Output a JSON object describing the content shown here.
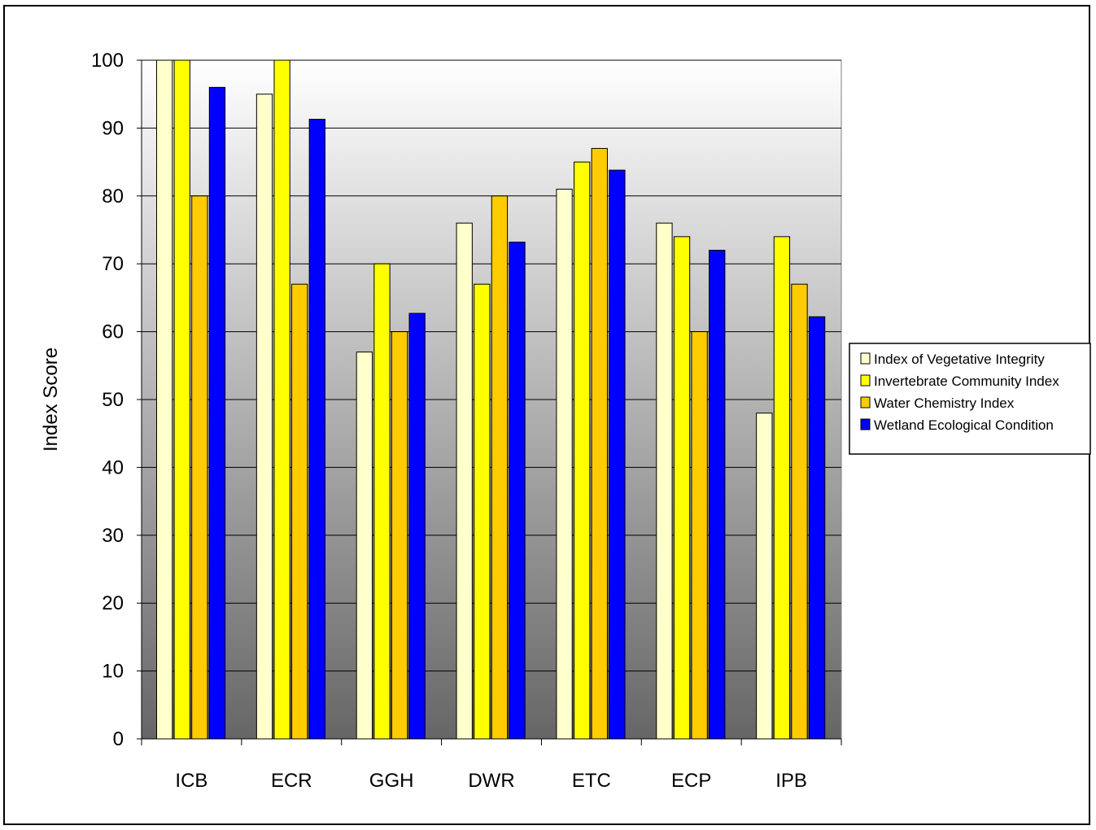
{
  "chart_data": {
    "type": "bar",
    "title": "",
    "xlabel": "",
    "ylabel": "Index Score",
    "ylim": [
      0,
      100
    ],
    "yticks": [
      0,
      10,
      20,
      30,
      40,
      50,
      60,
      70,
      80,
      90,
      100
    ],
    "grid": true,
    "legend_position": "right",
    "categories": [
      "ICB",
      "ECR",
      "GGH",
      "DWR",
      "ETC",
      "ECP",
      "IPB"
    ],
    "series": [
      {
        "name": "Index of Vegetative Integrity",
        "color": "#FFFFCC",
        "values": [
          100,
          95,
          57,
          76,
          81,
          76,
          48
        ]
      },
      {
        "name": "Invertebrate Community Index",
        "color": "#FFFF00",
        "values": [
          100,
          100,
          70,
          67,
          85,
          74,
          74
        ]
      },
      {
        "name": "Water Chemistry Index",
        "color": "#FFCC00",
        "values": [
          80,
          67,
          60,
          80,
          87,
          60,
          67
        ]
      },
      {
        "name": "Wetland Ecological Condition",
        "color": "#0000FF",
        "values": [
          96,
          91.3,
          62.7,
          73.2,
          83.8,
          72,
          62.2
        ]
      }
    ]
  }
}
